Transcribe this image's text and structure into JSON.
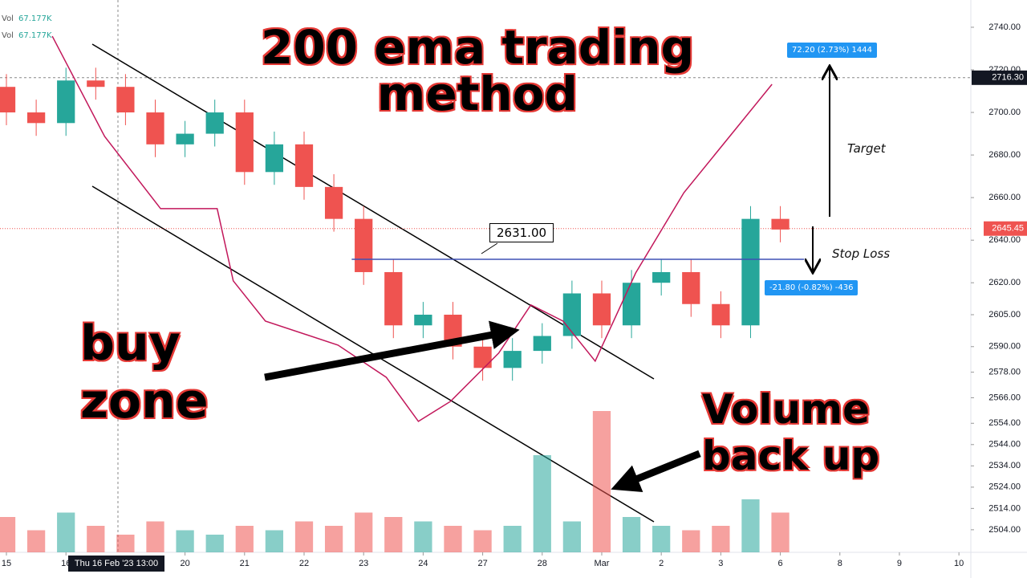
{
  "chart_data": {
    "type": "candlestick",
    "title": "200 ema trading method",
    "annotations": {
      "buy_zone": "buy zone",
      "volume": "Volume back up",
      "target": "Target",
      "stop_loss": "Stop Loss"
    },
    "legend": {
      "vol_1": "Vol",
      "vol_1_value": "67.177K",
      "vol_2": "Vol",
      "vol_2_value": "67.177K"
    },
    "crosshair_label": "Thu 16 Feb '23 13:00",
    "xlim": [
      -0.108,
      16.2
    ],
    "ylim": [
      2493.4,
      2752.8
    ],
    "xticks": [
      {
        "value": 0,
        "label": "15"
      },
      {
        "value": 1,
        "label": "16"
      },
      {
        "value": 3,
        "label": "20"
      },
      {
        "value": 4,
        "label": "21"
      },
      {
        "value": 5,
        "label": "22"
      },
      {
        "value": 6,
        "label": "23"
      },
      {
        "value": 7,
        "label": "24"
      },
      {
        "value": 8,
        "label": "27"
      },
      {
        "value": 9,
        "label": "28"
      },
      {
        "value": 10,
        "label": "Mar"
      },
      {
        "value": 11,
        "label": "2"
      },
      {
        "value": 12,
        "label": "3"
      },
      {
        "value": 13,
        "label": "6"
      },
      {
        "value": 14,
        "label": "8"
      },
      {
        "value": 15,
        "label": "9"
      },
      {
        "value": 16,
        "label": "10"
      }
    ],
    "yticks": [
      {
        "value": 2740,
        "label": "2740.00"
      },
      {
        "value": 2720,
        "label": "2720.00"
      },
      {
        "value": 2700,
        "label": "2700.00"
      },
      {
        "value": 2680,
        "label": "2680.00"
      },
      {
        "value": 2660,
        "label": "2660.00"
      },
      {
        "value": 2640,
        "label": "2640.00"
      },
      {
        "value": 2620,
        "label": "2620.00"
      },
      {
        "value": 2605,
        "label": "2605.00"
      },
      {
        "value": 2590,
        "label": "2590.00"
      },
      {
        "value": 2578,
        "label": "2578.00"
      },
      {
        "value": 2566,
        "label": "2566.00"
      },
      {
        "value": 2554,
        "label": "2554.00"
      },
      {
        "value": 2544,
        "label": "2544.00"
      },
      {
        "value": 2534,
        "label": "2534.00"
      },
      {
        "value": 2524,
        "label": "2524.00"
      },
      {
        "value": 2514,
        "label": "2514.00"
      },
      {
        "value": 2504,
        "label": "2504.00"
      }
    ],
    "up_color": "#26a69a",
    "down_color": "#ef5350",
    "candles": {
      "x": [
        0,
        0.5,
        1,
        1.5,
        2,
        2.5,
        3,
        3.5,
        4,
        4.5,
        5,
        5.5,
        6,
        6.5,
        7,
        7.5,
        8,
        8.5,
        9,
        9.5,
        10,
        10.5,
        11,
        11.5,
        12,
        12.5,
        13
      ],
      "open": [
        2712,
        2700,
        2695,
        2715,
        2712,
        2700,
        2685,
        2690,
        2700,
        2672,
        2685,
        2665,
        2650,
        2625,
        2600,
        2605,
        2590,
        2580,
        2588,
        2595,
        2615,
        2600,
        2620,
        2625,
        2610,
        2600,
        2650
      ],
      "high": [
        2718,
        2706,
        2721,
        2721,
        2718,
        2706,
        2696,
        2706,
        2706,
        2691,
        2691,
        2671,
        2656,
        2631,
        2611,
        2611,
        2596,
        2594,
        2601,
        2621,
        2621,
        2626,
        2631,
        2631,
        2616,
        2656,
        2656
      ],
      "low": [
        2694,
        2689,
        2689,
        2706,
        2694,
        2679,
        2679,
        2684,
        2666,
        2666,
        2659,
        2644,
        2619,
        2594,
        2594,
        2584,
        2574,
        2574,
        2582,
        2589,
        2594,
        2594,
        2614,
        2604,
        2594,
        2594,
        2639
      ],
      "close": [
        2700,
        2695,
        2715,
        2712,
        2700,
        2685,
        2690,
        2700,
        2672,
        2685,
        2665,
        2650,
        2625,
        2600,
        2605,
        2590,
        2580,
        2588,
        2595,
        2615,
        2600,
        2620,
        2625,
        2610,
        2600,
        2650,
        2645
      ],
      "volume": [
        40,
        25,
        45,
        30,
        20,
        35,
        25,
        20,
        30,
        25,
        35,
        30,
        45,
        40,
        35,
        30,
        25,
        30,
        110,
        35,
        160,
        40,
        30,
        25,
        30,
        60,
        45
      ]
    },
    "volume_lim": [
      0,
      400
    ],
    "ema": {
      "color": "#c2185b",
      "x": [
        0.77,
        1.65,
        2.59,
        3.54,
        3.81,
        4.35,
        5.57,
        6.38,
        6.92,
        7.46,
        8.27,
        8.81,
        9.35,
        9.89,
        10.57,
        11.38,
        12.86
      ],
      "values": [
        2735.8,
        2688.7,
        2654.8,
        2654.8,
        2620.9,
        2602,
        2590.7,
        2575.6,
        2554.9,
        2564.3,
        2587,
        2609.6,
        2602,
        2583.2,
        2624.6,
        2662.3,
        2713.2
      ]
    },
    "level": {
      "value": 2631,
      "label": "2631.00",
      "x": [
        5.8,
        13.4
      ],
      "color": "#3f51b5"
    },
    "last_price": {
      "value": 2645.45,
      "label": "2645.45"
    },
    "crosshair_price": {
      "value": 2716.3,
      "label": "2716.30"
    },
    "measure_target": "72.20 (2.73%) 1444",
    "measure_stop": "-21.80 (-0.82%) -436"
  }
}
